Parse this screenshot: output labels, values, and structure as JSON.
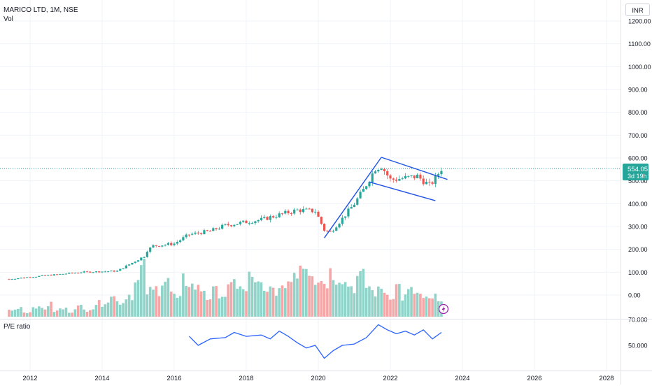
{
  "header": {
    "symbol_title": "MARICO LTD, 1M, NSE",
    "volume_label": "Vol",
    "currency": "INR"
  },
  "price_badge": {
    "price": "554.05",
    "countdown": "3d 19h"
  },
  "indicator": {
    "label": "P/E ratio"
  },
  "colors": {
    "up": "#26a69a",
    "down": "#ef5350",
    "vol_up": "#8fd3c9",
    "vol_down": "#f4a7a6",
    "trendline": "#1e53e5",
    "pe_line": "#2962ff",
    "price_line": "#26a69a",
    "grid": "#f0f3fa",
    "axis_text": "#131722",
    "lightning": "#9c27b0"
  },
  "icons": {
    "alert": "lightning-icon"
  },
  "chart_data": [
    {
      "type": "candlestick",
      "title": "MARICO LTD, 1M, NSE",
      "x_ticks": [
        "2012",
        "2014",
        "2016",
        "2018",
        "2020",
        "2022",
        "2024",
        "2026",
        "2028"
      ],
      "y_ticks": [
        "1200.00",
        "1100.00",
        "1000.00",
        "900.00",
        "800.00",
        "700.00",
        "600.00",
        "500.00",
        "400.00",
        "300.00",
        "200.00",
        "100.00",
        "0.00"
      ],
      "ylim": [
        0,
        1250
      ],
      "last_price": 554.05,
      "close_path": [
        [
          "2011-06",
          70
        ],
        [
          "2012-06",
          85
        ],
        [
          "2013-06",
          100
        ],
        [
          "2014-06",
          105
        ],
        [
          "2015-03",
          170
        ],
        [
          "2015-04",
          195
        ],
        [
          "2015-06",
          215
        ],
        [
          "2016-01",
          225
        ],
        [
          "2016-06",
          265
        ],
        [
          "2017-01",
          280
        ],
        [
          "2017-06",
          305
        ],
        [
          "2018-01",
          320
        ],
        [
          "2018-06",
          330
        ],
        [
          "2019-01",
          355
        ],
        [
          "2019-06",
          372
        ],
        [
          "2019-12",
          368
        ],
        [
          "2020-03",
          285
        ],
        [
          "2020-05",
          275
        ],
        [
          "2020-09",
          335
        ],
        [
          "2021-01",
          400
        ],
        [
          "2021-04",
          460
        ],
        [
          "2021-08",
          555
        ],
        [
          "2021-10",
          565
        ],
        [
          "2022-01",
          505
        ],
        [
          "2022-06",
          512
        ],
        [
          "2022-10",
          520
        ],
        [
          "2023-02",
          480
        ],
        [
          "2023-04",
          510
        ],
        [
          "2023-06",
          554
        ]
      ],
      "trendlines": [
        {
          "name": "flagpole",
          "points": [
            [
              "2020-03",
              250
            ],
            [
              "2021-10",
              603
            ]
          ]
        },
        {
          "name": "channel-upper",
          "points": [
            [
              "2021-10",
              603
            ],
            [
              "2023-08",
              506
            ]
          ]
        },
        {
          "name": "channel-lower",
          "points": [
            [
              "2021-06",
              495
            ],
            [
              "2023-04",
              413
            ]
          ]
        }
      ]
    },
    {
      "type": "bar",
      "title": "Vol",
      "note": "volume pane, relative scale",
      "values_relative": [
        12,
        18,
        8,
        20,
        15,
        22,
        10,
        14,
        9,
        18,
        12,
        16,
        24,
        30,
        35,
        25,
        40,
        60,
        85,
        45,
        50,
        70,
        40,
        30,
        65,
        55,
        50,
        35,
        45,
        40,
        50,
        60,
        45,
        70,
        55,
        40,
        50,
        45,
        65,
        85,
        100,
        90,
        70,
        65,
        80,
        75,
        60,
        55,
        70,
        55,
        45,
        50,
        40,
        55,
        35,
        45,
        40,
        30,
        35,
        25
      ]
    },
    {
      "type": "line",
      "title": "P/E ratio",
      "y_ticks": [
        "70.000",
        "50.000"
      ],
      "series": [
        {
          "name": "P/E ratio",
          "points": [
            [
              "2016-06",
              57
            ],
            [
              "2016-09",
              50
            ],
            [
              "2017-01",
              55
            ],
            [
              "2017-06",
              56
            ],
            [
              "2017-09",
              60
            ],
            [
              "2018-01",
              57
            ],
            [
              "2018-06",
              58
            ],
            [
              "2018-09",
              55
            ],
            [
              "2018-12",
              61
            ],
            [
              "2019-03",
              57
            ],
            [
              "2019-06",
              52
            ],
            [
              "2019-09",
              48
            ],
            [
              "2019-12",
              50
            ],
            [
              "2020-03",
              40
            ],
            [
              "2020-06",
              46
            ],
            [
              "2020-09",
              50
            ],
            [
              "2021-01",
              51
            ],
            [
              "2021-05",
              56
            ],
            [
              "2021-09",
              66
            ],
            [
              "2021-12",
              62
            ],
            [
              "2022-03",
              59
            ],
            [
              "2022-06",
              61
            ],
            [
              "2022-09",
              58
            ],
            [
              "2022-12",
              62
            ],
            [
              "2023-03",
              55
            ],
            [
              "2023-06",
              60
            ]
          ]
        }
      ]
    }
  ]
}
